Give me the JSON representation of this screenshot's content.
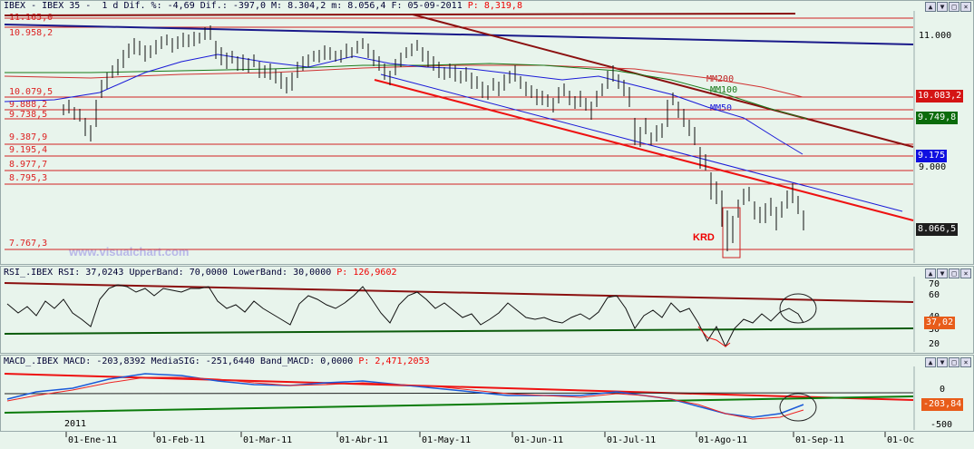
{
  "price_header": {
    "text": "IBEX - IBEX 35 -  1 d Dif. %: -4,69 Dif.: -397,0 M: 8.304,2 m: 8.056,4 F: 05-09-2011",
    "p_text": "P: 8,319,8"
  },
  "rsi_header": {
    "text": "RSI_.IBEX RSI: 37,0243 UpperBand: 70,0000 LowerBand: 30,0000",
    "p_text": "P: 126,9602"
  },
  "macd_header": {
    "text": "MACD_.IBEX MACD: -203,8392 MediaSIG: -251,6440 Band_MACD: 0,0000",
    "p_text": "P: 2,471,2053"
  },
  "watermark": "www.visualchart.com",
  "pattern_label": "KRD",
  "ma_labels": {
    "mm200": "MM200",
    "mm100": "MM100",
    "mm50": "MM50"
  },
  "price_axis": [
    "11.000",
    "9.000"
  ],
  "price_boxes": [
    {
      "value": "10.083,2",
      "color": "#d41414"
    },
    {
      "value": "9.749,8",
      "color": "#0b6b0b"
    },
    {
      "value": "9.175",
      "color": "#1010e0"
    },
    {
      "value": "8.066,5",
      "color": "#1e1e1e"
    }
  ],
  "levels": [
    "11.165,0",
    "10.958,2",
    "10.079,5",
    "9.888,2",
    "9.738,5",
    "9.387,9",
    "9.195,4",
    "8.977,7",
    "8.795,3",
    "7.767,3"
  ],
  "rsi_axis": [
    "70",
    "60",
    "40",
    "30",
    "20"
  ],
  "rsi_box": "37,02",
  "macd_axis": [
    "0",
    "-500"
  ],
  "macd_box": "-203,84",
  "year_label": "2011",
  "x_labels": [
    "01-Ene-11",
    "01-Feb-11",
    "01-Mar-11",
    "01-Abr-11",
    "01-May-11",
    "01-Jun-11",
    "01-Jul-11",
    "01-Ago-11",
    "01-Sep-11",
    "01-Oc"
  ],
  "window_buttons": [
    "▲",
    "▼",
    "□",
    "×"
  ],
  "colors": {
    "background": "#e8f4ec",
    "levels": "#d22222",
    "downtrend": "#8b1010",
    "channel_red": "#ee1111",
    "channel_blue": "#1a1ad8",
    "ma200": "#d03030",
    "ma100": "#1a7a1a",
    "ma50": "#1a1ad8"
  }
}
